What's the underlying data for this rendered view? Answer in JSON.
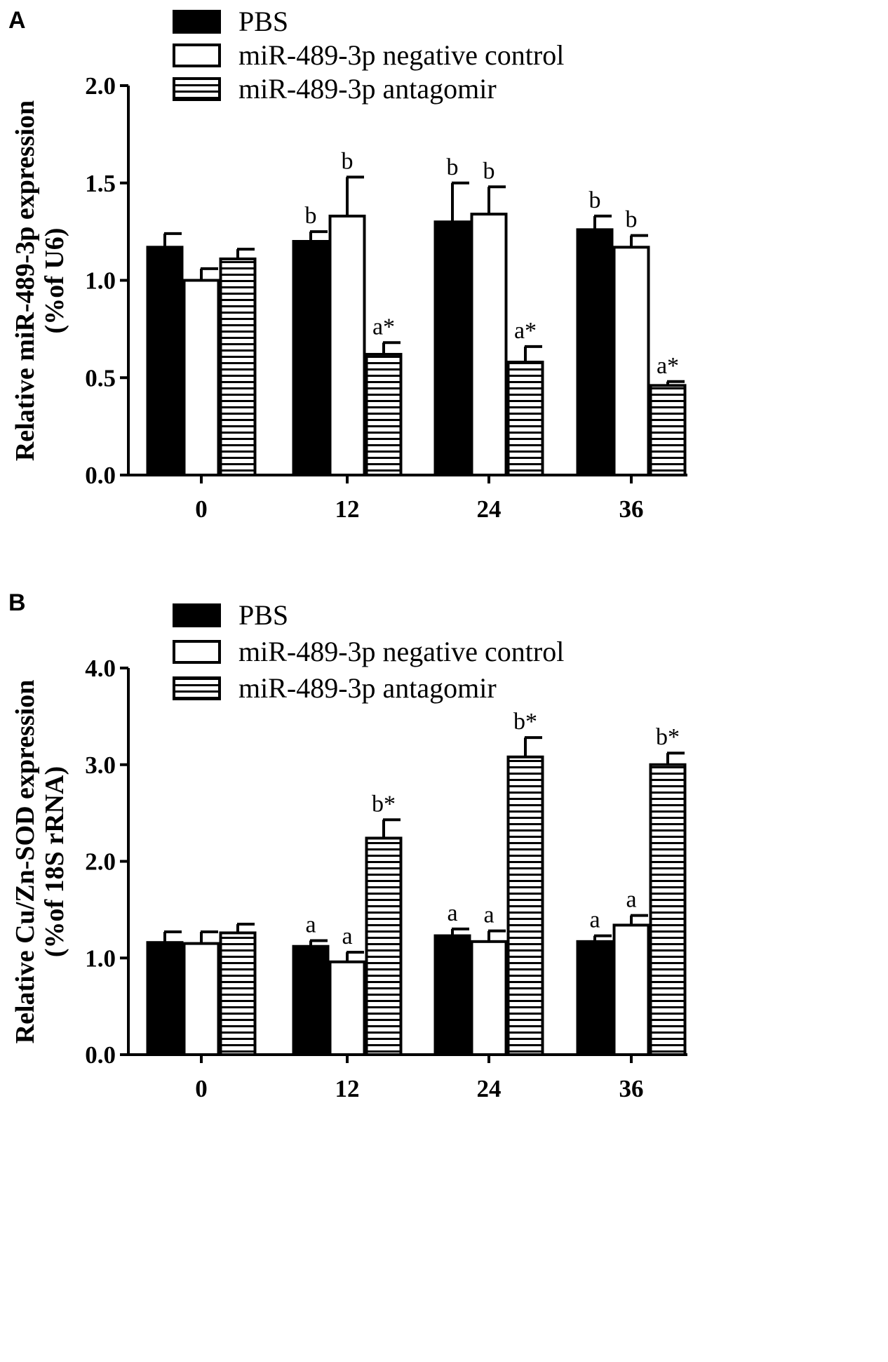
{
  "chart_data": [
    {
      "panel": "A",
      "type": "bar",
      "ylabel": "Relative miR-489-3p expression",
      "ylabel2": "(%of U6)",
      "xlabel": "",
      "categories": [
        "0",
        "12",
        "24",
        "36"
      ],
      "ylim": [
        0,
        2.0
      ],
      "yticks": [
        "0.0",
        "0.5",
        "1.0",
        "1.5",
        "2.0"
      ],
      "ytick_values": [
        0,
        0.5,
        1.0,
        1.5,
        2.0
      ],
      "series": [
        {
          "name": "PBS",
          "pattern": "solid",
          "values": [
            1.17,
            1.2,
            1.3,
            1.26
          ],
          "errors": [
            0.07,
            0.05,
            0.2,
            0.07
          ],
          "labels": [
            "",
            "b",
            "b",
            "b"
          ]
        },
        {
          "name": "miR-489-3p negative control",
          "pattern": "open",
          "values": [
            1.0,
            1.33,
            1.34,
            1.17
          ],
          "errors": [
            0.06,
            0.2,
            0.14,
            0.06
          ],
          "labels": [
            "",
            "b",
            "b",
            "b"
          ]
        },
        {
          "name": "miR-489-3p antagomir",
          "pattern": "hatched",
          "values": [
            1.11,
            0.62,
            0.58,
            0.46
          ],
          "errors": [
            0.05,
            0.06,
            0.08,
            0.02
          ],
          "labels": [
            "",
            "a*",
            "a*",
            "a*"
          ]
        }
      ]
    },
    {
      "panel": "B",
      "type": "bar",
      "ylabel": "Relative Cu/Zn-SOD expression",
      "ylabel2": "(%of 18S rRNA)",
      "xlabel": "",
      "categories": [
        "0",
        "12",
        "24",
        "36"
      ],
      "ylim": [
        0,
        4.0
      ],
      "yticks": [
        "0.0",
        "1.0",
        "2.0",
        "3.0",
        "4.0"
      ],
      "ytick_values": [
        0,
        1.0,
        2.0,
        3.0,
        4.0
      ],
      "series": [
        {
          "name": "PBS",
          "pattern": "solid",
          "values": [
            1.16,
            1.12,
            1.23,
            1.17
          ],
          "errors": [
            0.11,
            0.06,
            0.07,
            0.06
          ],
          "labels": [
            "",
            "a",
            "a",
            "a"
          ]
        },
        {
          "name": "miR-489-3p negative control",
          "pattern": "open",
          "values": [
            1.15,
            0.96,
            1.17,
            1.34
          ],
          "errors": [
            0.12,
            0.1,
            0.11,
            0.1
          ],
          "labels": [
            "",
            "a",
            "a",
            "a"
          ]
        },
        {
          "name": "miR-489-3p antagomir",
          "pattern": "hatched",
          "values": [
            1.26,
            2.24,
            3.08,
            3.0
          ],
          "errors": [
            0.09,
            0.19,
            0.2,
            0.12
          ],
          "labels": [
            "",
            "b*",
            "b*",
            "b*"
          ]
        }
      ]
    }
  ]
}
